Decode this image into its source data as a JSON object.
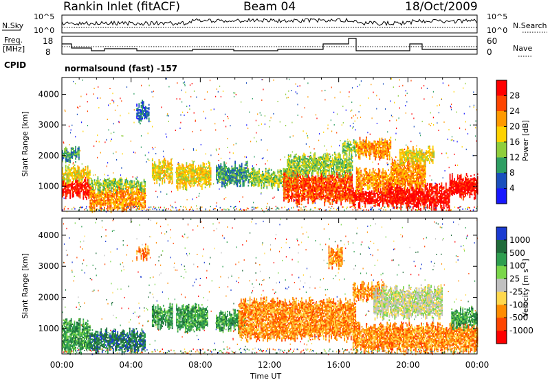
{
  "header": {
    "title": "Rankin Inlet (fitACF)",
    "beam": "Beam 04",
    "date": "18/Oct/2009"
  },
  "noise_panel": {
    "left_label": "N.Sky",
    "right_label": "N.Search",
    "ticks_top": "10^5",
    "ticks_bottom": "10^0"
  },
  "freq_panel": {
    "left_label": "Freq.",
    "left_unit": "[MHz]",
    "left_ticks": [
      "18",
      "8"
    ],
    "right_label": "Nave",
    "right_ticks": [
      "60",
      "0"
    ]
  },
  "cpid": {
    "label": "CPID",
    "value": "normalsound (fast) -157"
  },
  "chart_data": [
    {
      "type": "heatmap",
      "title": "",
      "name": "power",
      "xlabel": "",
      "ylabel": "Slant Range [km]",
      "x_ticks": [
        "00:00",
        "04:00",
        "08:00",
        "12:00",
        "16:00",
        "20:00",
        "00:00"
      ],
      "xlim_hours": [
        0,
        24
      ],
      "y_ticks": [
        1000,
        2000,
        3000,
        4000
      ],
      "ylim": [
        180,
        4550
      ],
      "colorbar": {
        "label": "Power [dB]",
        "ticks": [
          "28",
          "24",
          "20",
          "16",
          "12",
          "8",
          "4"
        ],
        "colors": [
          "#ff0000",
          "#ff4500",
          "#ff9900",
          "#ffd200",
          "#8fce3c",
          "#2e9e63",
          "#1a4fbd",
          "#1717ff"
        ]
      },
      "regions": [
        {
          "t": [
            0.0,
            1.6
          ],
          "r": [
            700,
            1200
          ],
          "c": 0
        },
        {
          "t": [
            0.0,
            1.6
          ],
          "r": [
            1200,
            1600
          ],
          "c": 3
        },
        {
          "t": [
            0.0,
            1.0
          ],
          "r": [
            1900,
            2200
          ],
          "c": 5
        },
        {
          "t": [
            1.6,
            4.8
          ],
          "r": [
            300,
            900
          ],
          "c": 2
        },
        {
          "t": [
            1.6,
            4.8
          ],
          "r": [
            900,
            1200
          ],
          "c": 4
        },
        {
          "t": [
            4.3,
            5.0
          ],
          "r": [
            3200,
            3700
          ],
          "c": 6
        },
        {
          "t": [
            5.2,
            6.4
          ],
          "r": [
            1200,
            1800
          ],
          "c": 3
        },
        {
          "t": [
            6.6,
            8.6
          ],
          "r": [
            1000,
            1700
          ],
          "c": 3
        },
        {
          "t": [
            8.9,
            10.8
          ],
          "r": [
            1100,
            1700
          ],
          "c": 5
        },
        {
          "t": [
            10.8,
            13.6
          ],
          "r": [
            1000,
            1500
          ],
          "c": 4
        },
        {
          "t": [
            12.8,
            16.8
          ],
          "r": [
            500,
            1400
          ],
          "c": 1
        },
        {
          "t": [
            13.0,
            16.8
          ],
          "r": [
            1400,
            2000
          ],
          "c": 4
        },
        {
          "t": [
            16.2,
            17.0
          ],
          "r": [
            2100,
            2400
          ],
          "c": 4
        },
        {
          "t": [
            16.8,
            18.8
          ],
          "r": [
            400,
            900
          ],
          "c": 0
        },
        {
          "t": [
            17.0,
            19.0
          ],
          "r": [
            900,
            1500
          ],
          "c": 2
        },
        {
          "t": [
            17.0,
            19.0
          ],
          "r": [
            2000,
            2500
          ],
          "c": 2
        },
        {
          "t": [
            18.8,
            22.4
          ],
          "r": [
            350,
            1000
          ],
          "c": 0
        },
        {
          "t": [
            19.0,
            21.0
          ],
          "r": [
            1000,
            1800
          ],
          "c": 2
        },
        {
          "t": [
            19.5,
            21.5
          ],
          "r": [
            1800,
            2200
          ],
          "c": 3
        },
        {
          "t": [
            22.4,
            24.0
          ],
          "r": [
            700,
            1300
          ],
          "c": 0
        }
      ]
    },
    {
      "type": "heatmap",
      "title": "",
      "name": "velocity",
      "xlabel": "Time UT",
      "ylabel": "Slant Range [km]",
      "x_ticks": [
        "00:00",
        "04:00",
        "08:00",
        "12:00",
        "16:00",
        "20:00",
        "00:00"
      ],
      "xlim_hours": [
        0,
        24
      ],
      "y_ticks": [
        1000,
        2000,
        3000,
        4000
      ],
      "ylim": [
        180,
        4550
      ],
      "colorbar": {
        "label": "Velocity [m s⁻¹]",
        "ticks": [
          "1000",
          "500",
          "100",
          "25",
          "-25",
          "-100",
          "-500",
          "-1000"
        ],
        "colors": [
          "#1a3bd1",
          "#1f6b3a",
          "#2e9e4f",
          "#7ad64a",
          "#c0c0c0",
          "#ffd84d",
          "#ff8c00",
          "#ff4500",
          "#ff0000"
        ]
      },
      "regions": [
        {
          "t": [
            0.0,
            1.6
          ],
          "r": [
            300,
            1200
          ],
          "c": 2
        },
        {
          "t": [
            1.6,
            4.8
          ],
          "r": [
            300,
            900
          ],
          "c": 1
        },
        {
          "t": [
            4.3,
            5.0
          ],
          "r": [
            3300,
            3600
          ],
          "c": 6
        },
        {
          "t": [
            5.2,
            6.4
          ],
          "r": [
            1100,
            1700
          ],
          "c": 2
        },
        {
          "t": [
            6.6,
            8.4
          ],
          "r": [
            1000,
            1700
          ],
          "c": 2
        },
        {
          "t": [
            8.9,
            10.6
          ],
          "r": [
            1000,
            1500
          ],
          "c": 2
        },
        {
          "t": [
            10.2,
            17.0
          ],
          "r": [
            700,
            1900
          ],
          "c": 6
        },
        {
          "t": [
            15.4,
            16.2
          ],
          "r": [
            3000,
            3600
          ],
          "c": 6
        },
        {
          "t": [
            16.8,
            18.6
          ],
          "r": [
            2000,
            2400
          ],
          "c": 6
        },
        {
          "t": [
            18.0,
            22.0
          ],
          "r": [
            1400,
            2300
          ],
          "c": 4
        },
        {
          "t": [
            16.8,
            24.0
          ],
          "r": [
            300,
            1100
          ],
          "c": 6
        },
        {
          "t": [
            22.5,
            24.0
          ],
          "r": [
            1100,
            1600
          ],
          "c": 2
        }
      ]
    }
  ]
}
